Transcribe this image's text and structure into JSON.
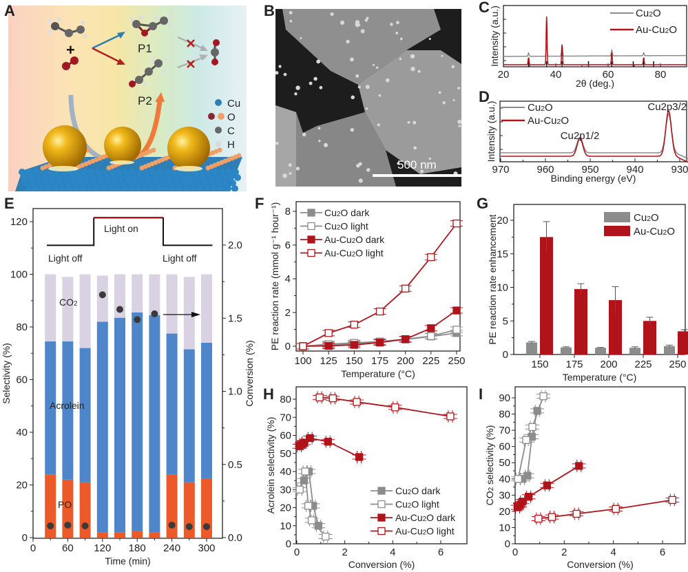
{
  "panels": {
    "A": {
      "letter": "A",
      "products": [
        "P1",
        "P2"
      ],
      "legend": [
        {
          "label": "Cu",
          "colors": [
            "#2e7fb8"
          ]
        },
        {
          "label": "O",
          "colors": [
            "#8b2530",
            "#f0a066"
          ]
        },
        {
          "label": "C",
          "colors": [
            "#666666"
          ]
        },
        {
          "label": "H",
          "colors": [
            "#d9d9d9"
          ]
        }
      ],
      "plus": "+"
    },
    "B": {
      "letter": "B",
      "scale_bar": "500 nm"
    },
    "C": {
      "letter": "C"
    },
    "D": {
      "letter": "D"
    },
    "E": {
      "letter": "E",
      "light_off_1": "Light off",
      "light_on": "Light on",
      "light_off_2": "Light off",
      "labels": {
        "co2": "CO2",
        "acrolein": "Acrolein",
        "po": "PO"
      }
    },
    "F": {
      "letter": "F"
    },
    "G": {
      "letter": "G"
    },
    "H": {
      "letter": "H"
    },
    "I": {
      "letter": "I"
    }
  },
  "colors": {
    "cu2o": "#8c8c8c",
    "au_cu2o": "#b0141a",
    "co2_bar": "#d9d2e3",
    "acrolein_bar": "#4f86c9",
    "po_bar": "#ec5a2a",
    "conv_dot": "#3a3a3a"
  },
  "chart_data": [
    {
      "id": "C",
      "type": "line",
      "title": "",
      "xlabel": "2θ (deg.)",
      "ylabel": "Intensity (a.u.)",
      "xlim": [
        20,
        90
      ],
      "xticks": [
        20,
        40,
        60,
        80
      ],
      "legend": [
        "Cu2O",
        "Au-Cu2O"
      ],
      "legend_position": "top-right",
      "peaks_2theta": [
        29.6,
        36.5,
        42.4,
        61.4,
        73.6,
        77.4
      ],
      "series": [
        {
          "name": "Cu2O",
          "baseline": 0.35,
          "peaks": [
            [
              29.6,
              0.07
            ],
            [
              36.5,
              0.25
            ],
            [
              42.4,
              0.25
            ],
            [
              61.4,
              0.12
            ],
            [
              73.6,
              0.06
            ]
          ]
        },
        {
          "name": "Au-Cu2O",
          "baseline": 0.1,
          "peaks": [
            [
              29.6,
              0.15
            ],
            [
              36.5,
              1.0
            ],
            [
              42.4,
              0.4
            ],
            [
              61.4,
              0.25
            ],
            [
              73.6,
              0.15
            ]
          ]
        }
      ],
      "reference_lines": [
        29.6,
        36.5,
        42.4,
        52.5,
        61.4,
        69.6,
        73.6,
        77.4
      ]
    },
    {
      "id": "D",
      "type": "line",
      "title": "",
      "xlabel": "Binding energy (eV)",
      "ylabel": "Intensity (a.u.)",
      "xlim": [
        970,
        928
      ],
      "xticks": [
        970,
        960,
        950,
        940,
        930
      ],
      "legend": [
        "Cu2O",
        "Au-Cu2O"
      ],
      "legend_position": "top-left",
      "annotations": [
        {
          "text": "Cu2p1/2",
          "x": 952.3
        },
        {
          "text": "Cu2p3/2",
          "x": 932.5
        }
      ],
      "series": [
        {
          "name": "Cu2O",
          "baseline": 0.3,
          "peaks": [
            [
              952.3,
              0.3
            ],
            [
              932.5,
              0.75
            ]
          ]
        },
        {
          "name": "Au-Cu2O",
          "baseline": 0.22,
          "peaks": [
            [
              952.3,
              0.35
            ],
            [
              932.5,
              0.88
            ]
          ]
        }
      ]
    },
    {
      "id": "E",
      "type": "bar",
      "xlabel": "Time (min)",
      "ylabel": "Selectivity (%)",
      "y2label": "Conversion (%)",
      "xlim": [
        0,
        320
      ],
      "xticks": [
        0,
        60,
        120,
        180,
        240,
        300
      ],
      "ylim": [
        0,
        125
      ],
      "yticks": [
        0,
        20,
        40,
        60,
        80,
        100,
        120
      ],
      "y2lim": [
        0,
        2.15
      ],
      "y2ticks": [
        0.0,
        0.5,
        1.0,
        1.5,
        2.0
      ],
      "x": [
        30,
        60,
        90,
        120,
        150,
        180,
        210,
        240,
        270,
        300
      ],
      "series": [
        {
          "name": "PO",
          "values": [
            24,
            22,
            21,
            2,
            2,
            2.5,
            2,
            24,
            21,
            22.5
          ]
        },
        {
          "name": "Acrolein",
          "values": [
            50.5,
            52.5,
            51,
            80,
            81.5,
            83,
            82.5,
            53.5,
            50.5,
            51.5
          ]
        },
        {
          "name": "CO2",
          "values": [
            25.5,
            24.5,
            28,
            17.5,
            16.5,
            14.5,
            15.5,
            22.5,
            27.5,
            26
          ]
        },
        {
          "name": "Conversion",
          "axis": "right",
          "values": [
            0.08,
            0.085,
            0.08,
            1.66,
            1.56,
            1.49,
            1.53,
            0.085,
            0.075,
            0.075
          ]
        }
      ],
      "light_schedule": [
        {
          "from": 0,
          "to": 105,
          "state": "Light off"
        },
        {
          "from": 105,
          "to": 225,
          "state": "Light on"
        },
        {
          "from": 225,
          "to": 320,
          "state": "Light off"
        }
      ]
    },
    {
      "id": "F",
      "type": "line",
      "xlabel": "Temperature (°C)",
      "ylabel": "PE reaction rate (mmol g⁻¹ hour⁻¹)",
      "xlim": [
        95,
        255
      ],
      "xticks": [
        100,
        125,
        150,
        175,
        200,
        225,
        250
      ],
      "ylim": [
        -0.4,
        8.3
      ],
      "yticks": [
        0,
        2,
        4,
        6,
        8
      ],
      "x": [
        100,
        125,
        150,
        175,
        200,
        225,
        250
      ],
      "legend_position": "top-left",
      "series": [
        {
          "name": "Cu2O dark",
          "values": [
            0,
            0.08,
            0.15,
            0.25,
            0.4,
            0.58,
            0.78
          ]
        },
        {
          "name": "Cu2O light",
          "values": [
            0,
            0.12,
            0.2,
            0.28,
            0.42,
            0.6,
            0.98
          ]
        },
        {
          "name": "Au-Cu2O dark",
          "values": [
            0,
            0.02,
            0.08,
            0.22,
            0.42,
            1.07,
            2.12
          ]
        },
        {
          "name": "Au-Cu2O light",
          "values": [
            0,
            0.78,
            1.28,
            2.06,
            3.42,
            5.28,
            7.28
          ]
        }
      ]
    },
    {
      "id": "G",
      "type": "bar",
      "xlabel": "Temperature (°C)",
      "ylabel": "PE reaction rate enhancement",
      "categories": [
        "150",
        "175",
        "200",
        "225",
        "250"
      ],
      "ylim": [
        0,
        22
      ],
      "yticks": [
        0,
        5,
        10,
        15,
        20
      ],
      "legend_position": "top-right",
      "series": [
        {
          "name": "Cu2O",
          "values": [
            1.8,
            1.05,
            1.0,
            1.0,
            1.25
          ],
          "errors": [
            0.15,
            0.1,
            0.05,
            0.15,
            0.15
          ]
        },
        {
          "name": "Au-Cu2O",
          "values": [
            17.5,
            9.75,
            8.1,
            5.0,
            3.45
          ],
          "errors": [
            2.3,
            0.8,
            2.0,
            0.55,
            0.25
          ]
        }
      ]
    },
    {
      "id": "H",
      "type": "scatter",
      "xlabel": "Conversion (%)",
      "ylabel": "Acrolein selectivity (%)",
      "xlim": [
        0,
        7
      ],
      "xticks": [
        0,
        2,
        4,
        6
      ],
      "ylim": [
        0,
        85
      ],
      "yticks": [
        0,
        10,
        20,
        30,
        40,
        50,
        60,
        70,
        80
      ],
      "legend_position": "bottom-right",
      "series": [
        {
          "name": "Cu2O dark",
          "x": [
            0.3,
            0.5,
            0.68,
            0.9
          ],
          "y": [
            35,
            40,
            21,
            10
          ]
        },
        {
          "name": "Cu2O light",
          "x": [
            0.12,
            0.35,
            0.48,
            0.62,
            1.2
          ],
          "y": [
            30,
            40,
            21,
            13,
            4
          ]
        },
        {
          "name": "Au-Cu2O dark",
          "x": [
            0.1,
            0.2,
            0.3,
            0.55,
            1.3,
            2.6
          ],
          "y": [
            54,
            55,
            56,
            58.5,
            56.5,
            48
          ]
        },
        {
          "name": "Au-Cu2O light",
          "x": [
            0.95,
            1.5,
            2.5,
            4.1,
            6.4
          ],
          "y": [
            81,
            80.5,
            78.5,
            75.5,
            70.5
          ]
        }
      ]
    },
    {
      "id": "I",
      "type": "scatter",
      "xlabel": "Conversion (%)",
      "ylabel": "CO2 selectivity (%)",
      "xlim": [
        0,
        7
      ],
      "xticks": [
        0,
        2,
        4,
        6
      ],
      "ylim": [
        0,
        95
      ],
      "yticks": [
        0,
        10,
        20,
        30,
        40,
        50,
        60,
        70,
        80,
        90
      ],
      "series": [
        {
          "name": "Cu2O dark",
          "x": [
            0.3,
            0.5,
            0.68,
            0.9
          ],
          "y": [
            40,
            42,
            66,
            82
          ]
        },
        {
          "name": "Cu2O light",
          "x": [
            0.12,
            0.45,
            0.7,
            1.15
          ],
          "y": [
            40,
            64,
            72,
            91
          ]
        },
        {
          "name": "Au-Cu2O dark",
          "x": [
            0.1,
            0.2,
            0.3,
            0.55,
            1.3,
            2.6
          ],
          "y": [
            22.5,
            24,
            26,
            29,
            36,
            48
          ]
        },
        {
          "name": "Au-Cu2O light",
          "x": [
            0.95,
            1.5,
            2.5,
            4.1,
            6.4
          ],
          "y": [
            15.5,
            16.5,
            18.5,
            21.5,
            27
          ]
        }
      ]
    }
  ]
}
